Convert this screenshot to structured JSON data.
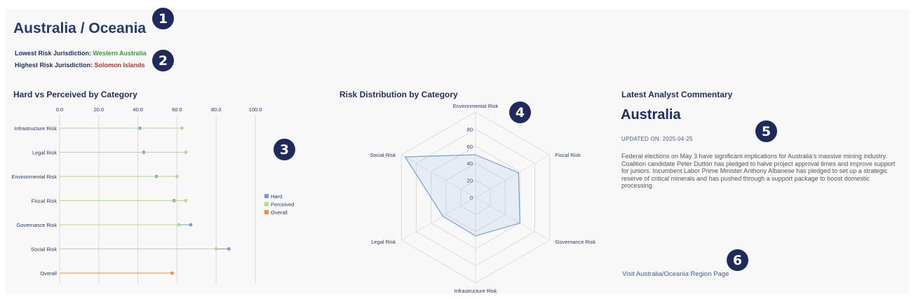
{
  "header": {
    "title": "Australia / Oceania",
    "lowest_label": "Lowest Risk Jurisdiction:",
    "lowest_value": "Western Australia",
    "highest_label": "Highest Risk Jurisdiction:",
    "highest_value": "Solomon Islands",
    "lowest_color": "#3b9a3b",
    "highest_color": "#cc2b2b"
  },
  "badges": [
    "1",
    "2",
    "3",
    "4",
    "5",
    "6"
  ],
  "lollipop": {
    "title": "Hard vs Perceived by Category",
    "chart_data": {
      "type": "scatter",
      "categories": [
        "Infrastructure Risk",
        "Legal Risk",
        "Environmental Risk",
        "Fiscal Risk",
        "Governance Risk",
        "Social Risk",
        "Overall"
      ],
      "xlim": [
        0,
        100
      ],
      "xticks": [
        "0.0",
        "20.0",
        "40.0",
        "60.0",
        "80.0",
        "100.0"
      ],
      "series": [
        {
          "name": "Hard",
          "color": "#6f9fd8",
          "values": [
            41,
            43,
            49.5,
            58.5,
            67,
            86.5,
            null
          ]
        },
        {
          "name": "Perceived",
          "color": "#b9d88a",
          "values": [
            62.5,
            64.5,
            60,
            64.5,
            61,
            80,
            null
          ]
        },
        {
          "name": "Overall",
          "color": "#f28c3c",
          "values": [
            null,
            null,
            null,
            null,
            null,
            null,
            57.5
          ]
        }
      ],
      "legend_position": "right"
    }
  },
  "radar": {
    "title": "Risk Distribution by Category",
    "chart_data": {
      "type": "radar",
      "axes": [
        "Environmental Risk",
        "Fiscal Risk",
        "Governance Risk",
        "Infrastructure Risk",
        "Legal Risk",
        "Social Risk"
      ],
      "values": [
        50,
        58,
        60,
        45,
        44,
        95
      ],
      "rlim": [
        0,
        100
      ],
      "rticks": [
        "0",
        "20",
        "40",
        "60",
        "80"
      ],
      "color": "#6f9fd8"
    }
  },
  "commentary": {
    "title": "Latest Analyst Commentary",
    "country": "Australia",
    "updated": "UPDATED ON: 2025-04-25",
    "text": "Federal elections on May 3 have significant implications for Australia's massive mining industry. Coalition candidate Peter Dutton has pledged to halve project approval times and improve support for juniors. Incumbent Labor Prime Minister Anthony Albanese has pledged to set up a strategic reserve of critical minerals and has pushed through a support package to boost domestic processing.",
    "link": "Visit Australia/Oceania Region Page"
  }
}
